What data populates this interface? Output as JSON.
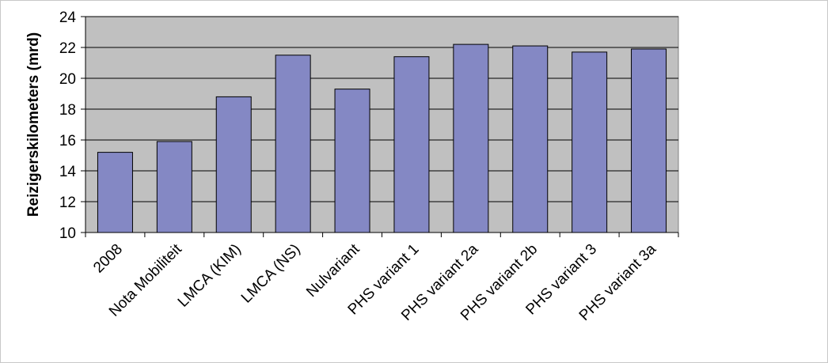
{
  "chart_data": {
    "type": "bar",
    "title": "",
    "xlabel": "",
    "ylabel": "Reizigerskilometers (mrd)",
    "categories": [
      "2008",
      "Nota Mobiliteit",
      "LMCA (KIM)",
      "LMCA (NS)",
      "Nulvariant",
      "PHS variant 1",
      "PHS variant 2a",
      "PHS variant 2b",
      "PHS variant 3",
      "PHS variant 3a"
    ],
    "values": [
      15.2,
      15.9,
      18.8,
      21.5,
      19.3,
      21.4,
      22.2,
      22.1,
      21.7,
      21.9
    ],
    "ylim": [
      10,
      24
    ],
    "yticks": [
      10,
      12,
      14,
      16,
      18,
      20,
      22,
      24
    ],
    "grid": true,
    "legend": "none",
    "colors": {
      "bar_fill": "#8488c4",
      "bar_stroke": "#000000",
      "plot_background": "#c0c0c0",
      "gridline": "#000000"
    }
  }
}
